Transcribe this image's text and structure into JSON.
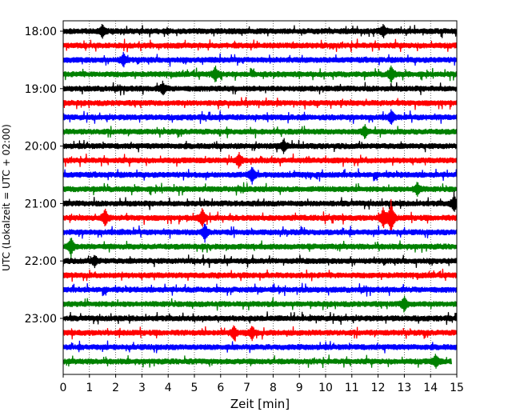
{
  "chart_data": {
    "type": "line",
    "subtype": "helicorder",
    "xlabel": "Zeit  [min]",
    "ylabel": "UTC (Lokalzeit = UTC + 02:00)",
    "xlim": [
      0,
      15
    ],
    "x_ticks": [
      "0",
      "1",
      "2",
      "3",
      "4",
      "5",
      "6",
      "7",
      "8",
      "9",
      "10",
      "11",
      "12",
      "13",
      "14",
      "15"
    ],
    "y_tick_labels": [
      "18:00",
      "19:00",
      "20:00",
      "21:00",
      "22:00",
      "23:00"
    ],
    "grid": "vertical dotted lines at each minute",
    "line_colors": [
      "#000000",
      "#ff0000",
      "#0000ff",
      "#008000"
    ],
    "trace_start_times": [
      "18:00",
      "18:15",
      "18:30",
      "18:45",
      "19:00",
      "19:15",
      "19:30",
      "19:45",
      "20:00",
      "20:15",
      "20:30",
      "20:45",
      "21:00",
      "21:15",
      "21:30",
      "21:45",
      "22:00",
      "22:15",
      "22:30",
      "22:45",
      "23:00",
      "23:15",
      "23:30",
      "23:45"
    ],
    "events": [
      {
        "trace": "18:00",
        "minute": 1.5,
        "amplitude": 0.6
      },
      {
        "trace": "18:00",
        "minute": 12.2,
        "amplitude": 0.6
      },
      {
        "trace": "18:30",
        "minute": 2.3,
        "amplitude": 0.6
      },
      {
        "trace": "18:45",
        "minute": 5.8,
        "amplitude": 0.7
      },
      {
        "trace": "18:45",
        "minute": 12.5,
        "amplitude": 0.8
      },
      {
        "trace": "19:00",
        "minute": 3.8,
        "amplitude": 0.6
      },
      {
        "trace": "19:30",
        "minute": 12.5,
        "amplitude": 0.6
      },
      {
        "trace": "19:45",
        "minute": 11.5,
        "amplitude": 0.6
      },
      {
        "trace": "20:00",
        "minute": 8.4,
        "amplitude": 0.6
      },
      {
        "trace": "20:15",
        "minute": 6.7,
        "amplitude": 0.7
      },
      {
        "trace": "20:30",
        "minute": 7.2,
        "amplitude": 0.8
      },
      {
        "trace": "20:45",
        "minute": 13.5,
        "amplitude": 0.6
      },
      {
        "trace": "21:00",
        "minute": 14.9,
        "amplitude": 0.8
      },
      {
        "trace": "21:15",
        "minute": 1.6,
        "amplitude": 0.8
      },
      {
        "trace": "21:15",
        "minute": 5.3,
        "amplitude": 0.9
      },
      {
        "trace": "21:15",
        "minute": 12.2,
        "amplitude": 1.0
      },
      {
        "trace": "21:15",
        "minute": 12.5,
        "amplitude": 1.6
      },
      {
        "trace": "21:30",
        "minute": 5.4,
        "amplitude": 0.8
      },
      {
        "trace": "21:45",
        "minute": 0.3,
        "amplitude": 0.9
      },
      {
        "trace": "22:00",
        "minute": 1.2,
        "amplitude": 0.5
      },
      {
        "trace": "23:15",
        "minute": 6.5,
        "amplitude": 0.6
      },
      {
        "trace": "23:15",
        "minute": 7.2,
        "amplitude": 0.6
      },
      {
        "trace": "22:45",
        "minute": 13.0,
        "amplitude": 0.7
      },
      {
        "trace": "23:45",
        "minute": 14.2,
        "amplitude": 0.6
      }
    ]
  }
}
